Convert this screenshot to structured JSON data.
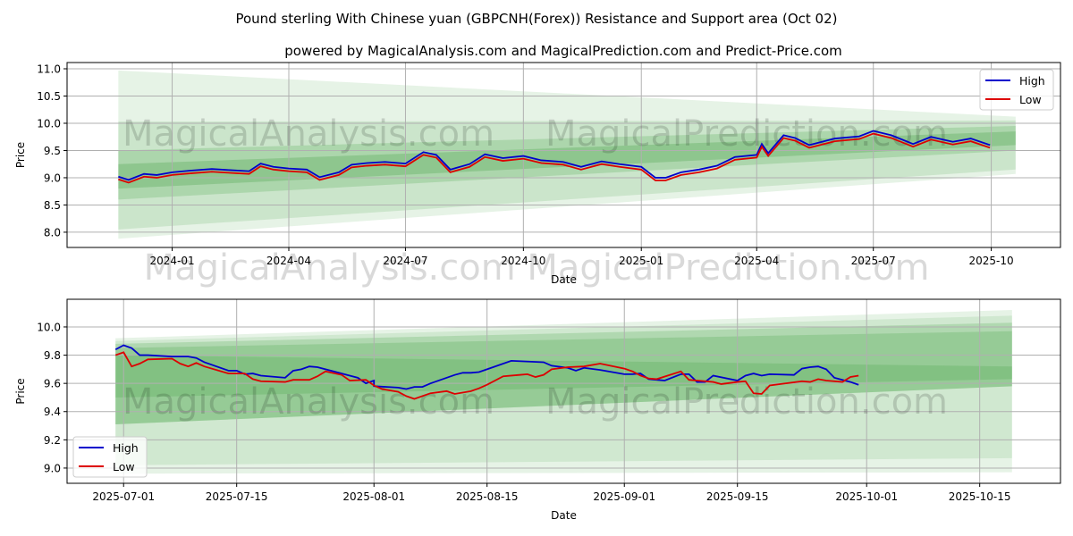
{
  "title": "Pound sterling With Chinese yuan (GBPCNH(Forex)) Resistance and Support area (Oct 02)",
  "subtitle": "powered by MagicalAnalysis.com and MagicalPrediction.com and Predict-Price.com",
  "watermarks": [
    "MagicalAnalysis.com",
    "MagicalPrediction.com"
  ],
  "colors": {
    "high": "#0000cc",
    "low": "#dd0000",
    "band": "#339933"
  },
  "chart_data": [
    {
      "type": "line",
      "xlabel": "Date",
      "ylabel": "Price",
      "xlim": [
        "2023-10-11",
        "2025-11-24"
      ],
      "ylim": [
        7.72,
        11.115
      ],
      "grid": true,
      "legend": "top-right",
      "xticks": [
        "2024-01",
        "2024-04",
        "2024-07",
        "2024-10",
        "2025-01",
        "2025-04",
        "2025-07",
        "2025-10"
      ],
      "yticks": [
        "8.0",
        "8.5",
        "9.0",
        "9.5",
        "10.0",
        "10.5",
        "11.0"
      ],
      "legend_entries": [
        "High",
        "Low"
      ],
      "band_range": [
        "2023-11-20",
        "2025-10-20"
      ],
      "bands": [
        {
          "start": [
            7.88,
            10.97
          ],
          "end": [
            9.07,
            10.12
          ],
          "alpha": 0.12
        },
        {
          "start": [
            8.05,
            10.03
          ],
          "end": [
            9.15,
            10.05
          ],
          "alpha": 0.15
        },
        {
          "start": [
            8.6,
            9.5
          ],
          "end": [
            9.5,
            9.95
          ],
          "alpha": 0.2
        },
        {
          "start": [
            8.8,
            9.25
          ],
          "end": [
            9.6,
            9.85
          ],
          "alpha": 0.25
        }
      ],
      "series": [
        {
          "name": "High",
          "points": [
            [
              "2023-11-20",
              9.02
            ],
            [
              "2023-11-28",
              8.96
            ],
            [
              "2023-12-10",
              9.07
            ],
            [
              "2023-12-20",
              9.05
            ],
            [
              "2024-01-01",
              9.1
            ],
            [
              "2024-01-15",
              9.13
            ],
            [
              "2024-02-01",
              9.16
            ],
            [
              "2024-02-15",
              9.14
            ],
            [
              "2024-03-01",
              9.12
            ],
            [
              "2024-03-10",
              9.26
            ],
            [
              "2024-03-20",
              9.2
            ],
            [
              "2024-04-01",
              9.17
            ],
            [
              "2024-04-15",
              9.15
            ],
            [
              "2024-04-25",
              9.01
            ],
            [
              "2024-05-10",
              9.1
            ],
            [
              "2024-05-20",
              9.24
            ],
            [
              "2024-06-01",
              9.27
            ],
            [
              "2024-06-15",
              9.29
            ],
            [
              "2024-07-01",
              9.26
            ],
            [
              "2024-07-15",
              9.47
            ],
            [
              "2024-07-25",
              9.42
            ],
            [
              "2024-08-05",
              9.15
            ],
            [
              "2024-08-20",
              9.25
            ],
            [
              "2024-09-01",
              9.43
            ],
            [
              "2024-09-15",
              9.36
            ],
            [
              "2024-10-01",
              9.4
            ],
            [
              "2024-10-15",
              9.32
            ],
            [
              "2024-11-01",
              9.29
            ],
            [
              "2024-11-15",
              9.2
            ],
            [
              "2024-12-01",
              9.3
            ],
            [
              "2024-12-15",
              9.25
            ],
            [
              "2025-01-01",
              9.2
            ],
            [
              "2025-01-12",
              9.0
            ],
            [
              "2025-01-20",
              9.0
            ],
            [
              "2025-02-01",
              9.1
            ],
            [
              "2025-02-15",
              9.15
            ],
            [
              "2025-03-01",
              9.22
            ],
            [
              "2025-03-15",
              9.38
            ],
            [
              "2025-04-01",
              9.42
            ],
            [
              "2025-04-05",
              9.62
            ],
            [
              "2025-04-10",
              9.45
            ],
            [
              "2025-04-22",
              9.78
            ],
            [
              "2025-05-01",
              9.73
            ],
            [
              "2025-05-12",
              9.6
            ],
            [
              "2025-06-01",
              9.72
            ],
            [
              "2025-06-20",
              9.76
            ],
            [
              "2025-07-01",
              9.86
            ],
            [
              "2025-07-15",
              9.78
            ],
            [
              "2025-08-01",
              9.62
            ],
            [
              "2025-08-15",
              9.75
            ],
            [
              "2025-09-01",
              9.66
            ],
            [
              "2025-09-15",
              9.72
            ],
            [
              "2025-09-30",
              9.6
            ]
          ]
        },
        {
          "name": "Low",
          "offset": -0.05
        }
      ]
    },
    {
      "type": "line",
      "xlabel": "Date",
      "ylabel": "Price",
      "xlim": [
        "2025-06-24",
        "2025-10-25"
      ],
      "ylim": [
        8.892,
        10.196
      ],
      "grid": true,
      "legend": "lower-left",
      "xticks": [
        "2025-07-01",
        "2025-07-15",
        "2025-08-01",
        "2025-08-15",
        "2025-09-01",
        "2025-09-15",
        "2025-10-01",
        "2025-10-15"
      ],
      "yticks": [
        "9.0",
        "9.2",
        "9.4",
        "9.6",
        "9.8",
        "10.0"
      ],
      "legend_entries": [
        "High",
        "Low"
      ],
      "band_range": [
        "2025-06-30",
        "2025-10-19"
      ],
      "bands": [
        {
          "start": [
            8.96,
            9.92
          ],
          "end": [
            8.97,
            10.12
          ],
          "alpha": 0.12
        },
        {
          "start": [
            9.02,
            9.9
          ],
          "end": [
            9.07,
            10.08
          ],
          "alpha": 0.12
        },
        {
          "start": [
            9.31,
            9.88
          ],
          "end": [
            9.58,
            10.03
          ],
          "alpha": 0.2
        },
        {
          "start": [
            9.31,
            9.85
          ],
          "end": [
            9.58,
            9.97
          ],
          "alpha": 0.2
        },
        {
          "start": [
            9.5,
            9.8
          ],
          "end": [
            9.63,
            9.72
          ],
          "alpha": 0.2
        }
      ],
      "series": [
        {
          "name": "High",
          "points": [
            [
              "2025-06-30",
              9.84
            ],
            [
              "2025-07-01",
              9.87
            ],
            [
              "2025-07-02",
              9.85
            ],
            [
              "2025-07-03",
              9.8
            ],
            [
              "2025-07-04",
              9.8
            ],
            [
              "2025-07-07",
              9.79
            ],
            [
              "2025-07-08",
              9.79
            ],
            [
              "2025-07-09",
              9.79
            ],
            [
              "2025-07-10",
              9.78
            ],
            [
              "2025-07-11",
              9.75
            ],
            [
              "2025-07-14",
              9.69
            ],
            [
              "2025-07-15",
              9.69
            ],
            [
              "2025-07-16",
              9.665
            ],
            [
              "2025-07-17",
              9.67
            ],
            [
              "2025-07-18",
              9.655
            ],
            [
              "2025-07-21",
              9.64
            ],
            [
              "2025-07-22",
              9.69
            ],
            [
              "2025-07-23",
              9.7
            ],
            [
              "2025-07-24",
              9.72
            ],
            [
              "2025-07-25",
              9.715
            ],
            [
              "2025-07-28",
              9.67
            ],
            [
              "2025-07-29",
              9.655
            ],
            [
              "2025-07-30",
              9.64
            ],
            [
              "2025-07-31",
              9.6
            ],
            [
              "2025-08-01",
              9.62
            ],
            [
              "2025-08-01",
              9.58
            ],
            [
              "2025-08-04",
              9.57
            ],
            [
              "2025-08-05",
              9.56
            ],
            [
              "2025-08-06",
              9.575
            ],
            [
              "2025-08-07",
              9.575
            ],
            [
              "2025-08-08",
              9.6
            ],
            [
              "2025-08-11",
              9.66
            ],
            [
              "2025-08-12",
              9.675
            ],
            [
              "2025-08-13",
              9.675
            ],
            [
              "2025-08-14",
              9.68
            ],
            [
              "2025-08-15",
              9.7
            ],
            [
              "2025-08-18",
              9.76
            ],
            [
              "2025-08-22",
              9.75
            ],
            [
              "2025-08-23",
              9.725
            ],
            [
              "2025-08-25",
              9.71
            ],
            [
              "2025-08-26",
              9.69
            ],
            [
              "2025-08-27",
              9.71
            ],
            [
              "2025-08-29",
              9.695
            ],
            [
              "2025-09-01",
              9.665
            ],
            [
              "2025-09-02",
              9.665
            ],
            [
              "2025-09-03",
              9.67
            ],
            [
              "2025-09-04",
              9.63
            ],
            [
              "2025-09-05",
              9.625
            ],
            [
              "2025-09-06",
              9.62
            ],
            [
              "2025-09-08",
              9.665
            ],
            [
              "2025-09-09",
              9.665
            ],
            [
              "2025-09-10",
              9.61
            ],
            [
              "2025-09-11",
              9.61
            ],
            [
              "2025-09-12",
              9.655
            ],
            [
              "2025-09-15",
              9.62
            ],
            [
              "2025-09-16",
              9.655
            ],
            [
              "2025-09-17",
              9.67
            ],
            [
              "2025-09-18",
              9.655
            ],
            [
              "2025-09-19",
              9.665
            ],
            [
              "2025-09-22",
              9.66
            ],
            [
              "2025-09-23",
              9.705
            ],
            [
              "2025-09-24",
              9.715
            ],
            [
              "2025-09-25",
              9.72
            ],
            [
              "2025-09-26",
              9.7
            ],
            [
              "2025-09-27",
              9.64
            ],
            [
              "2025-09-29",
              9.61
            ],
            [
              "2025-09-30",
              9.59
            ],
            [
              "2025-10-01",
              9.615
            ],
            [
              "2025-10-02",
              9.675
            ],
            [
              "2025-10-03",
              9.62
            ]
          ]
        },
        {
          "name": "Low",
          "points": [
            [
              "2025-06-30",
              9.8
            ],
            [
              "2025-07-01",
              9.82
            ],
            [
              "2025-07-02",
              9.72
            ],
            [
              "2025-07-03",
              9.74
            ],
            [
              "2025-07-04",
              9.77
            ],
            [
              "2025-07-07",
              9.775
            ],
            [
              "2025-07-08",
              9.74
            ],
            [
              "2025-07-09",
              9.72
            ],
            [
              "2025-07-10",
              9.745
            ],
            [
              "2025-07-11",
              9.72
            ],
            [
              "2025-07-14",
              9.67
            ],
            [
              "2025-07-16",
              9.67
            ],
            [
              "2025-07-17",
              9.63
            ],
            [
              "2025-07-18",
              9.615
            ],
            [
              "2025-07-21",
              9.61
            ],
            [
              "2025-07-22",
              9.625
            ],
            [
              "2025-07-24",
              9.625
            ],
            [
              "2025-07-25",
              9.65
            ],
            [
              "2025-07-26",
              9.685
            ],
            [
              "2025-07-28",
              9.66
            ],
            [
              "2025-07-29",
              9.62
            ],
            [
              "2025-07-31",
              9.625
            ],
            [
              "2025-08-01",
              9.585
            ],
            [
              "2025-08-02",
              9.56
            ],
            [
              "2025-08-04",
              9.54
            ],
            [
              "2025-08-05",
              9.51
            ],
            [
              "2025-08-06",
              9.49
            ],
            [
              "2025-08-08",
              9.53
            ],
            [
              "2025-08-10",
              9.545
            ],
            [
              "2025-08-11",
              9.525
            ],
            [
              "2025-08-13",
              9.545
            ],
            [
              "2025-08-14",
              9.565
            ],
            [
              "2025-08-15",
              9.59
            ],
            [
              "2025-08-17",
              9.65
            ],
            [
              "2025-08-19",
              9.66
            ],
            [
              "2025-08-20",
              9.665
            ],
            [
              "2025-08-21",
              9.645
            ],
            [
              "2025-08-22",
              9.66
            ],
            [
              "2025-08-23",
              9.7
            ],
            [
              "2025-08-25",
              9.715
            ],
            [
              "2025-08-27",
              9.72
            ],
            [
              "2025-08-29",
              9.74
            ],
            [
              "2025-09-01",
              9.705
            ],
            [
              "2025-09-02",
              9.685
            ],
            [
              "2025-09-03",
              9.655
            ],
            [
              "2025-09-04",
              9.635
            ],
            [
              "2025-09-05",
              9.63
            ],
            [
              "2025-09-08",
              9.685
            ],
            [
              "2025-09-09",
              9.625
            ],
            [
              "2025-09-10",
              9.62
            ],
            [
              "2025-09-11",
              9.615
            ],
            [
              "2025-09-12",
              9.61
            ],
            [
              "2025-09-13",
              9.595
            ],
            [
              "2025-09-15",
              9.61
            ],
            [
              "2025-09-16",
              9.615
            ],
            [
              "2025-09-17",
              9.53
            ],
            [
              "2025-09-18",
              9.525
            ],
            [
              "2025-09-19",
              9.585
            ],
            [
              "2025-09-21",
              9.6
            ],
            [
              "2025-09-23",
              9.615
            ],
            [
              "2025-09-24",
              9.61
            ],
            [
              "2025-09-25",
              9.63
            ],
            [
              "2025-09-26",
              9.62
            ],
            [
              "2025-09-28",
              9.61
            ],
            [
              "2025-09-29",
              9.645
            ],
            [
              "2025-09-30",
              9.655
            ],
            [
              "2025-10-01",
              9.66
            ],
            [
              "2025-10-02",
              9.68
            ],
            [
              "2025-10-03",
              9.67
            ]
          ]
        }
      ]
    }
  ]
}
